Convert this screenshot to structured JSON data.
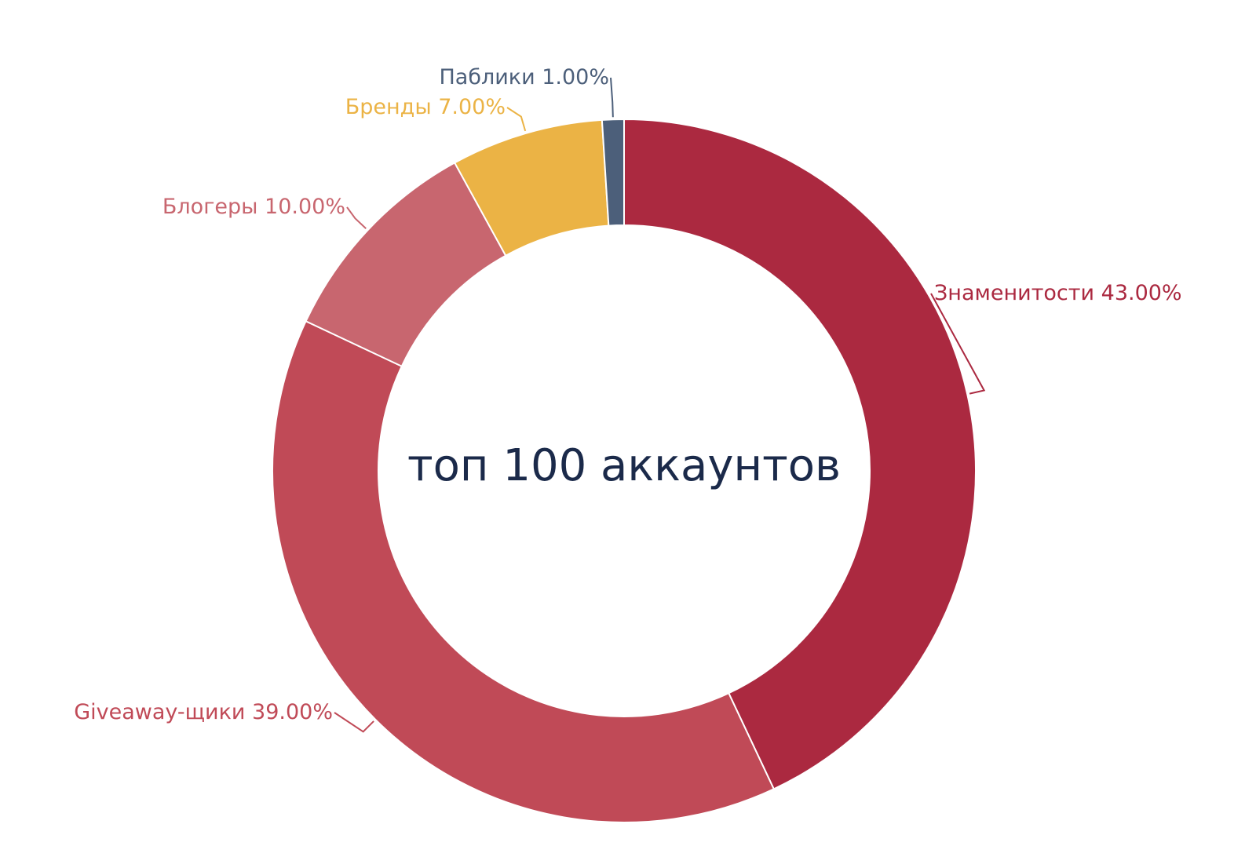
{
  "chart_data": {
    "type": "pie",
    "donut": true,
    "center_label": "топ 100 аккаунтов",
    "slices": [
      {
        "name": "Знаменитости",
        "value": 43.0,
        "label": "Знаменитости 43.00%",
        "color": "#ab2940"
      },
      {
        "name": "Giveaway-щики",
        "value": 39.0,
        "label": "Giveaway-щики 39.00%",
        "color": "#c04a57"
      },
      {
        "name": "Блогеры",
        "value": 10.0,
        "label": "Блогеры 10.00%",
        "color": "#c8666f"
      },
      {
        "name": "Бренды",
        "value": 7.0,
        "label": "Бренды 7.00%",
        "color": "#ebb345"
      },
      {
        "name": "Паблики",
        "value": 1.0,
        "label": "Паблики 1.00%",
        "color": "#4c5f7a"
      }
    ],
    "legend": "none"
  }
}
